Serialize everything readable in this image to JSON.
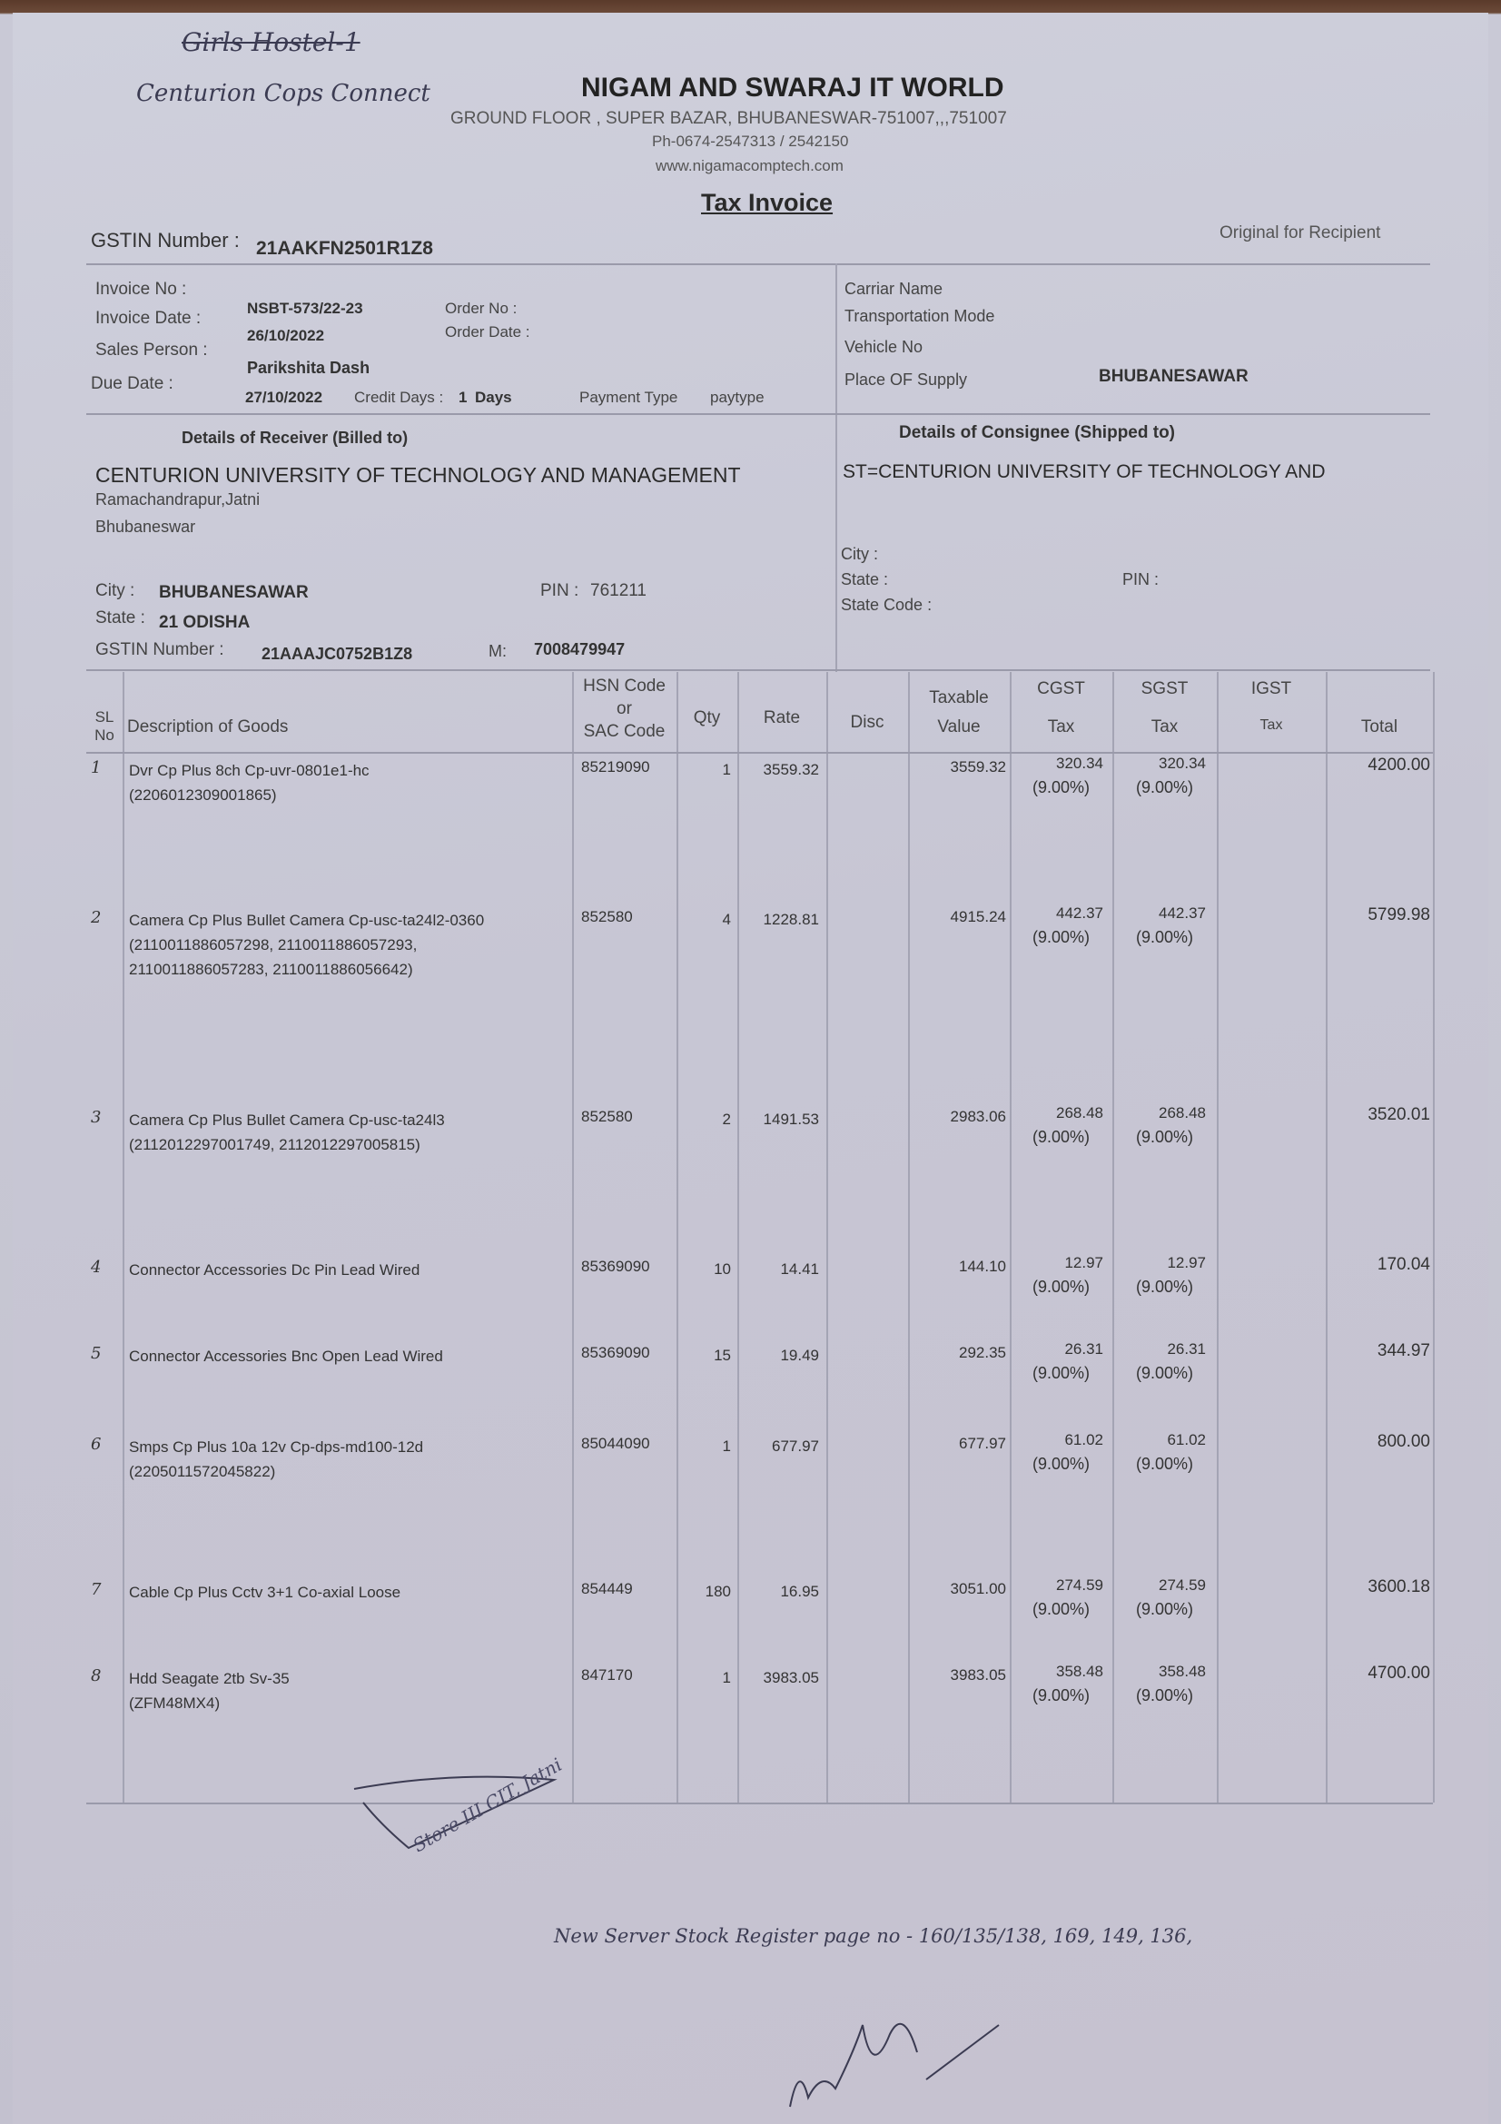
{
  "handwritten_top": {
    "line1": "Girls Hostel-1",
    "line2": "Centurion Cops Connect"
  },
  "seller": {
    "name": "NIGAM AND SWARAJ IT WORLD",
    "address": "GROUND FLOOR , SUPER BAZAR, BHUBANESWAR-751007,,,751007",
    "phone": "Ph-0674-2547313 / 2542150",
    "website": "www.nigamacomptech.com",
    "doc_title": "Tax Invoice",
    "gstin_label": "GSTIN Number :",
    "gstin": "21AAKFN2501R1Z8",
    "copy_label": "Original for Recipient"
  },
  "invoice": {
    "invoice_no_label": "Invoice No :",
    "invoice_no": "NSBT-573/22-23",
    "order_no_label": "Order No :",
    "invoice_date_label": "Invoice Date :",
    "invoice_date": "26/10/2022",
    "order_date_label": "Order Date :",
    "sales_person_label": "Sales Person :",
    "sales_person": "Parikshita Dash",
    "due_date_label": "Due Date :",
    "due_date": "27/10/2022",
    "credit_days_label": "Credit Days :",
    "credit_days": "1",
    "days_label": "Days",
    "payment_type_label": "Payment Type",
    "payment_type": "paytype"
  },
  "transport": {
    "carrier_label": "Carriar Name",
    "mode_label": "Transportation Mode",
    "vehicle_label": "Vehicle No",
    "place_label": "Place OF Supply",
    "place": "BHUBANESAWAR"
  },
  "receiver": {
    "heading": "Details of Receiver (Billed to)",
    "name": "CENTURION UNIVERSITY OF TECHNOLOGY AND MANAGEMENT",
    "address1": "Ramachandrapur,Jatni",
    "address2": "Bhubaneswar",
    "city_label": "City :",
    "city": "BHUBANESAWAR",
    "pin_label": "PIN :",
    "pin": "761211",
    "state_label": "State :",
    "state": "21 ODISHA",
    "gstin_label": "GSTIN Number :",
    "gstin": "21AAAJC0752B1Z8",
    "mobile_label": "M:",
    "mobile": "7008479947"
  },
  "consignee": {
    "heading": "Details of Consignee (Shipped to)",
    "name": "ST=CENTURION UNIVERSITY OF TECHNOLOGY AND",
    "city_label": "City :",
    "state_label": "State :",
    "pin_label": "PIN :",
    "state_code_label": "State Code :"
  },
  "table": {
    "headers": {
      "sl": "SL No",
      "desc": "Description of Goods",
      "hsn1": "HSN Code",
      "hsn2": "or",
      "hsn3": "SAC Code",
      "qty": "Qty",
      "rate": "Rate",
      "disc": "Disc",
      "taxable1": "Taxable",
      "taxable2": "Value",
      "cgst1": "CGST",
      "cgst2": "Tax",
      "sgst1": "SGST",
      "sgst2": "Tax",
      "igst1": "IGST",
      "igst2": "Tax",
      "total": "Total"
    },
    "rows": [
      {
        "sl": "1",
        "desc": [
          "Dvr Cp Plus 8ch Cp-uvr-0801e1-hc",
          "(2206012309001865)"
        ],
        "hsn": "85219090",
        "qty": "1",
        "rate": "3559.32",
        "disc": "",
        "taxable": "3559.32",
        "cgst": "320.34",
        "cgst_rate": "(9.00%)",
        "sgst": "320.34",
        "sgst_rate": "(9.00%)",
        "igst": "",
        "total": "4200.00"
      },
      {
        "sl": "2",
        "desc": [
          "Camera Cp Plus Bullet Camera Cp-usc-ta24l2-0360",
          "(2110011886057298, 2110011886057293,",
          "2110011886057283, 2110011886056642)"
        ],
        "hsn": "852580",
        "qty": "4",
        "rate": "1228.81",
        "disc": "",
        "taxable": "4915.24",
        "cgst": "442.37",
        "cgst_rate": "(9.00%)",
        "sgst": "442.37",
        "sgst_rate": "(9.00%)",
        "igst": "",
        "total": "5799.98"
      },
      {
        "sl": "3",
        "desc": [
          "Camera Cp Plus Bullet Camera Cp-usc-ta24l3",
          "(2112012297001749, 2112012297005815)"
        ],
        "hsn": "852580",
        "qty": "2",
        "rate": "1491.53",
        "disc": "",
        "taxable": "2983.06",
        "cgst": "268.48",
        "cgst_rate": "(9.00%)",
        "sgst": "268.48",
        "sgst_rate": "(9.00%)",
        "igst": "",
        "total": "3520.01"
      },
      {
        "sl": "4",
        "desc": [
          "Connector Accessories Dc Pin Lead Wired"
        ],
        "hsn": "85369090",
        "qty": "10",
        "rate": "14.41",
        "disc": "",
        "taxable": "144.10",
        "cgst": "12.97",
        "cgst_rate": "(9.00%)",
        "sgst": "12.97",
        "sgst_rate": "(9.00%)",
        "igst": "",
        "total": "170.04"
      },
      {
        "sl": "5",
        "desc": [
          "Connector Accessories Bnc Open Lead Wired"
        ],
        "hsn": "85369090",
        "qty": "15",
        "rate": "19.49",
        "disc": "",
        "taxable": "292.35",
        "cgst": "26.31",
        "cgst_rate": "(9.00%)",
        "sgst": "26.31",
        "sgst_rate": "(9.00%)",
        "igst": "",
        "total": "344.97"
      },
      {
        "sl": "6",
        "desc": [
          "Smps Cp Plus 10a 12v Cp-dps-md100-12d",
          "(2205011572045822)"
        ],
        "hsn": "85044090",
        "qty": "1",
        "rate": "677.97",
        "disc": "",
        "taxable": "677.97",
        "cgst": "61.02",
        "cgst_rate": "(9.00%)",
        "sgst": "61.02",
        "sgst_rate": "(9.00%)",
        "igst": "",
        "total": "800.00"
      },
      {
        "sl": "7",
        "desc": [
          "Cable Cp Plus Cctv 3+1 Co-axial Loose"
        ],
        "hsn": "854449",
        "qty": "180",
        "rate": "16.95",
        "disc": "",
        "taxable": "3051.00",
        "cgst": "274.59",
        "cgst_rate": "(9.00%)",
        "sgst": "274.59",
        "sgst_rate": "(9.00%)",
        "igst": "",
        "total": "3600.18"
      },
      {
        "sl": "8",
        "desc": [
          "Hdd Seagate 2tb Sv-35",
          "(ZFM48MX4)"
        ],
        "hsn": "847170",
        "qty": "1",
        "rate": "3983.05",
        "disc": "",
        "taxable": "3983.05",
        "cgst": "358.48",
        "cgst_rate": "(9.00%)",
        "sgst": "358.48",
        "sgst_rate": "(9.00%)",
        "igst": "",
        "total": "4700.00"
      }
    ]
  },
  "stamp": {
    "text": "Store III CIT, Jatni"
  },
  "handwritten_note": "New Server Stock Register page no - 160/135/138, 169, 149, 136,",
  "signature": "signature"
}
